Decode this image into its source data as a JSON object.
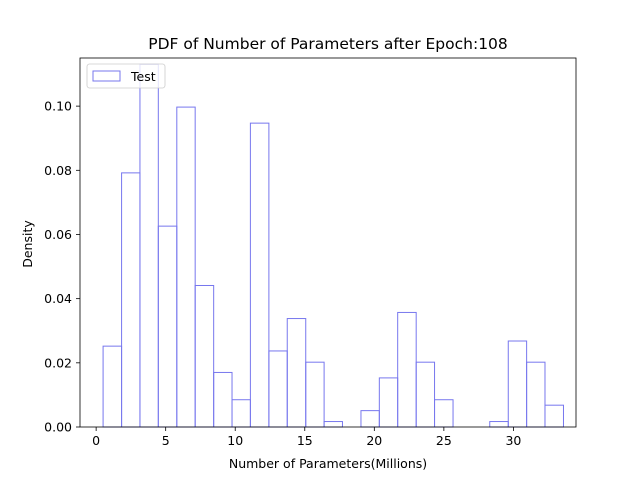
{
  "chart_data": {
    "type": "histogram",
    "title": "PDF of Number of Parameters after Epoch:108",
    "xlabel": "Number of Parameters(Millions)",
    "ylabel": "Density",
    "xlim": [
      -1.16,
      34.5
    ],
    "ylim": [
      0,
      0.115
    ],
    "xticks": [
      0,
      5,
      10,
      15,
      20,
      25,
      30
    ],
    "yticks": [
      0.0,
      0.02,
      0.04,
      0.06,
      0.08,
      0.1
    ],
    "ytick_labels": [
      "0.00",
      "0.02",
      "0.04",
      "0.06",
      "0.08",
      "0.10"
    ],
    "grid": false,
    "legend": {
      "position": "top-left",
      "entries": [
        "Test"
      ]
    },
    "series": [
      {
        "name": "Test",
        "style": "step",
        "color": "#7777ee",
        "bin_edges": [
          0.5,
          1.83,
          3.15,
          4.47,
          5.8,
          7.12,
          8.45,
          9.77,
          11.09,
          12.42,
          13.74,
          15.07,
          16.39,
          17.71,
          19.04,
          20.36,
          21.68,
          23.01,
          24.33,
          25.66,
          26.98,
          28.3,
          29.63,
          30.95,
          32.27,
          33.6
        ],
        "values": [
          0.0252,
          0.0792,
          0.113,
          0.0626,
          0.0997,
          0.0441,
          0.017,
          0.0085,
          0.0947,
          0.0237,
          0.0338,
          0.0202,
          0.0017,
          0.0,
          0.0051,
          0.0153,
          0.0357,
          0.0202,
          0.0085,
          0.0,
          0.0,
          0.0017,
          0.0268,
          0.0202,
          0.0068
        ]
      }
    ]
  }
}
